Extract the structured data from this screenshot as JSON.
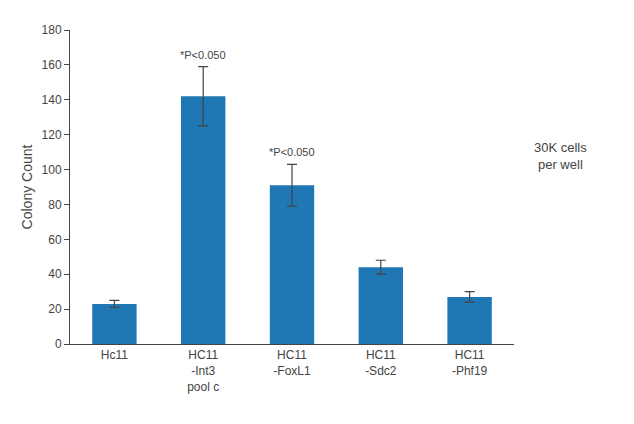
{
  "chart_data": {
    "type": "bar",
    "categories": [
      "Hc11",
      "HC11\n-Int3\npool c",
      "HC11\n-FoxL1",
      "HC11\n-Sdc2",
      "HC11\n-Phf19"
    ],
    "values": [
      23,
      142,
      91,
      44,
      27
    ],
    "errors": [
      2,
      17,
      12,
      4,
      3
    ],
    "ylabel": "Colony Count",
    "ylim": [
      0,
      180
    ],
    "yticks": [
      0,
      20,
      40,
      60,
      80,
      100,
      120,
      140,
      160,
      180
    ],
    "annotations": [
      {
        "text": "*P<0.050",
        "category": "HC11\n-Int3\npool c"
      },
      {
        "text": "*P<0.050",
        "category": "HC11\n-FoxL1"
      },
      {
        "text": "30K cells\nper well"
      }
    ],
    "grid": false
  }
}
